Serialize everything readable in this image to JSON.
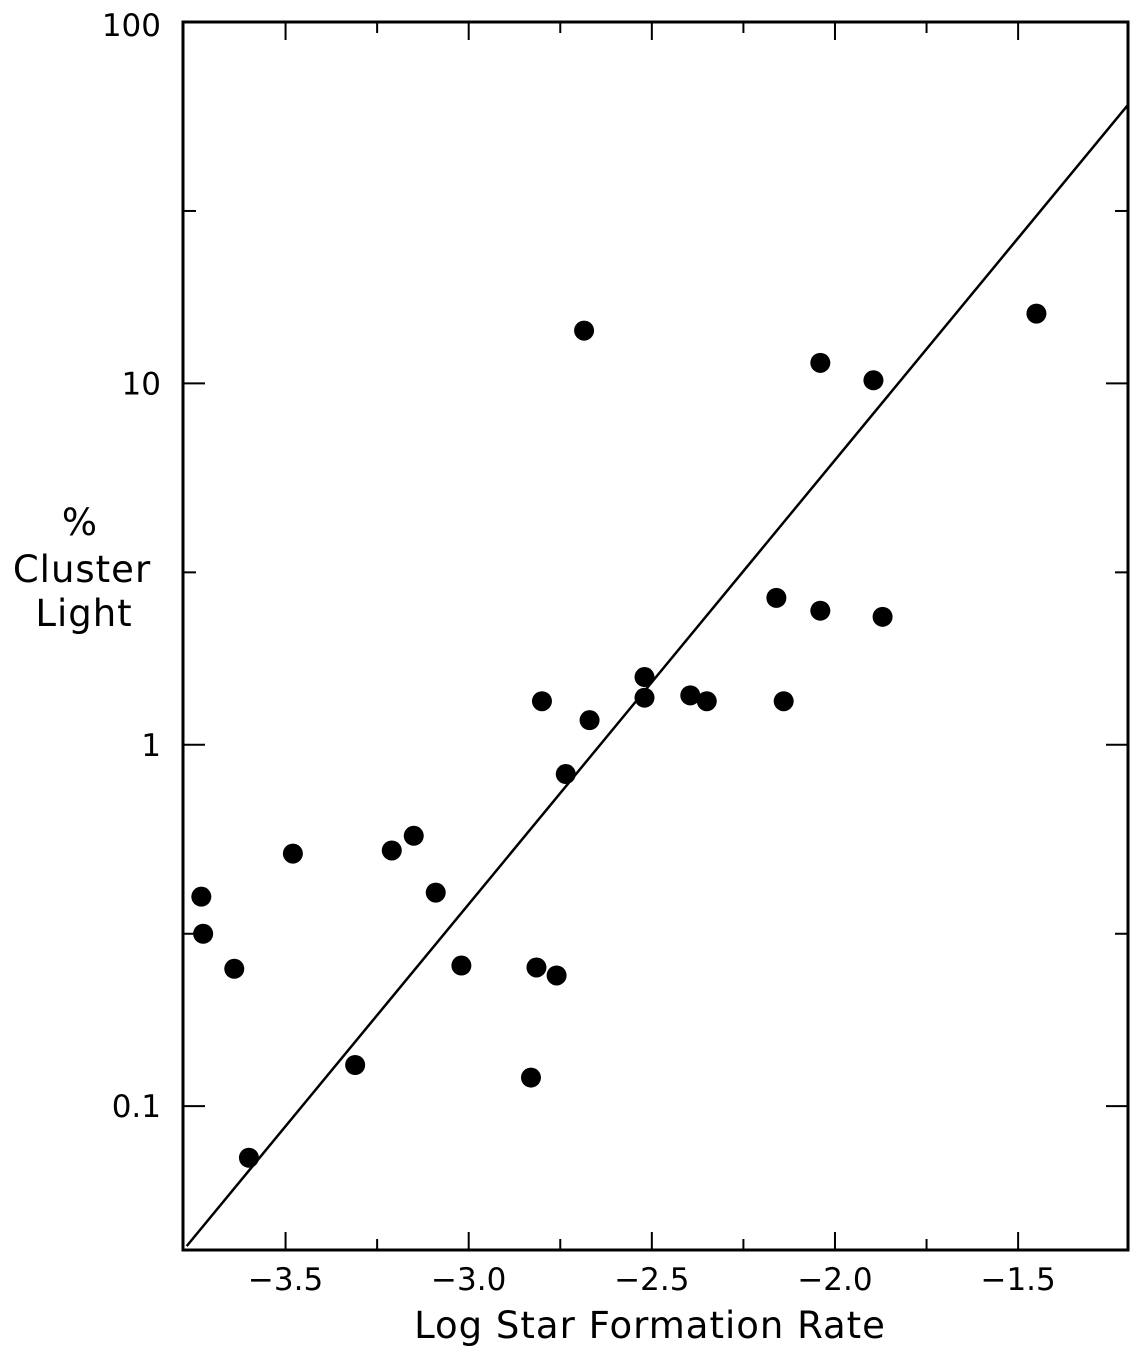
{
  "chart_data": {
    "type": "scatter",
    "title": "",
    "xlabel": "Log Star Formation Rate",
    "ylabel": [
      "%",
      "Cluster",
      "Light"
    ],
    "xlim": [
      -3.78,
      -1.2
    ],
    "ylim": [
      0.04,
      100
    ],
    "yscale": "log",
    "x_ticks": [
      {
        "value": -3.5,
        "label": "−3.5"
      },
      {
        "value": -3.0,
        "label": "−3.0"
      },
      {
        "value": -2.5,
        "label": "−2.5"
      },
      {
        "value": -2.0,
        "label": "−2.0"
      },
      {
        "value": -1.5,
        "label": "−1.5"
      }
    ],
    "x_minor_ticks": [
      -3.25,
      -2.75,
      -2.25,
      -1.75
    ],
    "y_ticks": [
      {
        "value": 0.1,
        "label": "0.1"
      },
      {
        "value": 1,
        "label": "1"
      },
      {
        "value": 10,
        "label": "10"
      },
      {
        "value": 100,
        "label": "100"
      }
    ],
    "y_minor_ticks": [
      0.3,
      3,
      30
    ],
    "grid": false,
    "series": [
      {
        "type": "scatter",
        "color": "#000000",
        "points": [
          {
            "x": -3.73,
            "y": 0.38
          },
          {
            "x": -3.725,
            "y": 0.3
          },
          {
            "x": -3.64,
            "y": 0.24
          },
          {
            "x": -3.6,
            "y": 0.072
          },
          {
            "x": -3.48,
            "y": 0.5
          },
          {
            "x": -3.31,
            "y": 0.13
          },
          {
            "x": -3.21,
            "y": 0.51
          },
          {
            "x": -3.15,
            "y": 0.56
          },
          {
            "x": -3.09,
            "y": 0.39
          },
          {
            "x": -3.02,
            "y": 0.245
          },
          {
            "x": -2.83,
            "y": 0.12
          },
          {
            "x": -2.815,
            "y": 0.242
          },
          {
            "x": -2.8,
            "y": 1.32
          },
          {
            "x": -2.76,
            "y": 0.23
          },
          {
            "x": -2.735,
            "y": 0.83
          },
          {
            "x": -2.685,
            "y": 14.0
          },
          {
            "x": -2.67,
            "y": 1.17
          },
          {
            "x": -2.52,
            "y": 1.54
          },
          {
            "x": -2.52,
            "y": 1.35
          },
          {
            "x": -2.395,
            "y": 1.37
          },
          {
            "x": -2.35,
            "y": 1.32
          },
          {
            "x": -2.16,
            "y": 2.55
          },
          {
            "x": -2.14,
            "y": 1.32
          },
          {
            "x": -2.04,
            "y": 11.4
          },
          {
            "x": -2.04,
            "y": 2.35
          },
          {
            "x": -1.895,
            "y": 10.2
          },
          {
            "x": -1.87,
            "y": 2.26
          },
          {
            "x": -1.45,
            "y": 15.6
          }
        ]
      },
      {
        "type": "line",
        "name": "",
        "color": "#000000",
        "points": [
          {
            "x": -3.77,
            "y": 0.041
          },
          {
            "x": -1.2,
            "y": 59
          }
        ]
      }
    ]
  }
}
